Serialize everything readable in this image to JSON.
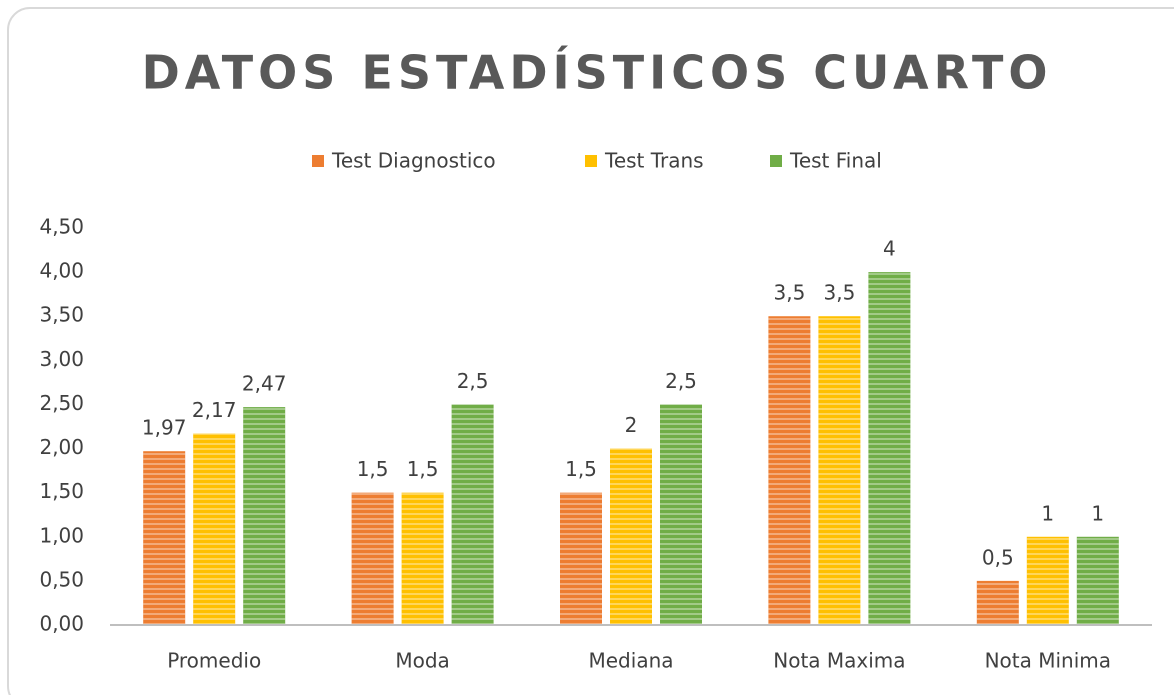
{
  "chart_data": {
    "type": "bar",
    "title": "DATOS ESTADÍSTICOS CUARTO",
    "categories": [
      "Promedio",
      "Moda",
      "Mediana",
      "Nota Maxima",
      "Nota Minima"
    ],
    "series": [
      {
        "name": "Test Diagnostico",
        "color": "#ed7d31",
        "values": [
          1.97,
          1.5,
          1.5,
          3.5,
          0.5
        ],
        "value_labels": [
          "1,97",
          "1,5",
          "1,5",
          "3,5",
          "0,5"
        ]
      },
      {
        "name": "Test Trans",
        "color": "#ffc000",
        "values": [
          2.17,
          1.5,
          2,
          3.5,
          1
        ],
        "value_labels": [
          "2,17",
          "1,5",
          "2",
          "3,5",
          "1"
        ]
      },
      {
        "name": "Test Final",
        "color": "#70ad47",
        "values": [
          2.47,
          2.5,
          2.5,
          4,
          1
        ],
        "value_labels": [
          "2,47",
          "2,5",
          "2,5",
          "4",
          "1"
        ]
      }
    ],
    "ylim": [
      0,
      4.5
    ],
    "yticks": [
      {
        "value": 0,
        "label": "0,00"
      },
      {
        "value": 0.5,
        "label": "0,50"
      },
      {
        "value": 1,
        "label": "1,00"
      },
      {
        "value": 1.5,
        "label": "1,50"
      },
      {
        "value": 2,
        "label": "2,00"
      },
      {
        "value": 2.5,
        "label": "2,50"
      },
      {
        "value": 3,
        "label": "3,00"
      },
      {
        "value": 3.5,
        "label": "3,50"
      },
      {
        "value": 4,
        "label": "4,00"
      },
      {
        "value": 4.5,
        "label": "4,50"
      }
    ],
    "grid": false,
    "legend": "top"
  }
}
